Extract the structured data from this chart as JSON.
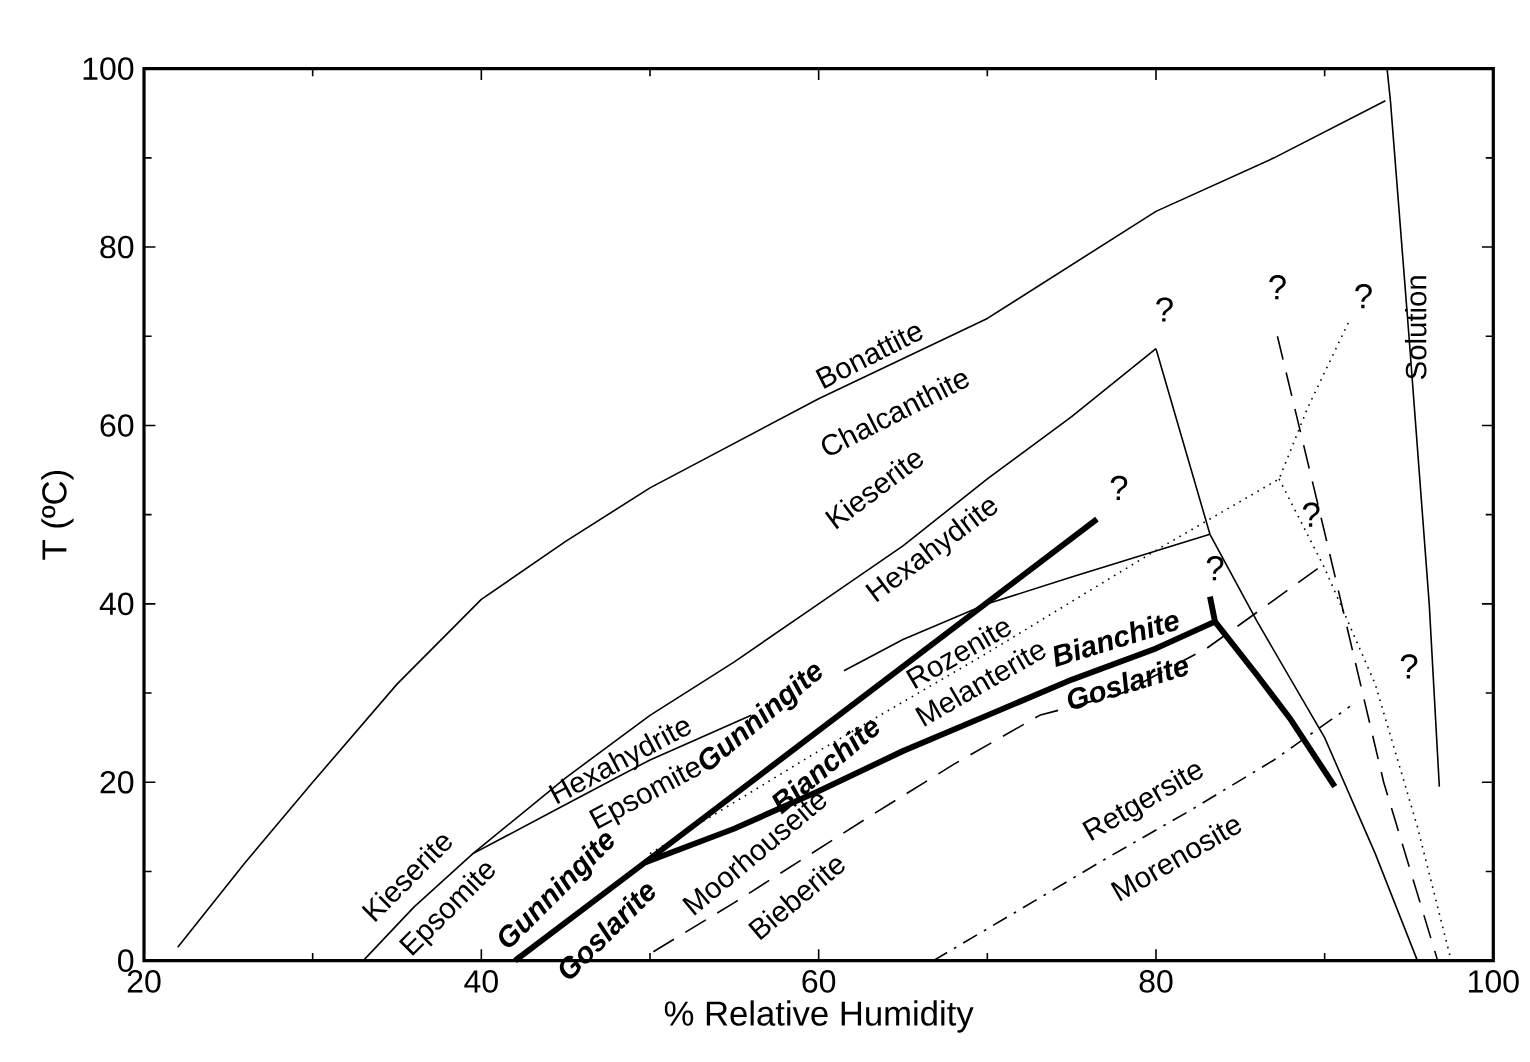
{
  "chart_data": {
    "type": "line",
    "xlabel": "% Relative Humidity",
    "ylabel": "T (ºC)",
    "xlim": [
      20,
      100
    ],
    "ylim": [
      0,
      100
    ],
    "xticks": [
      20,
      40,
      60,
      80,
      100
    ],
    "yticks": [
      0,
      20,
      40,
      60,
      80,
      100
    ],
    "marker": "none",
    "series": [
      {
        "color": "#000000",
        "line_style": "solid",
        "x": [
          22,
          26,
          30,
          35,
          40,
          45,
          50,
          60,
          70,
          80,
          87,
          93.6
        ],
        "values": [
          1.5,
          11,
          20,
          31,
          40.5,
          47,
          53,
          63,
          72,
          84,
          90,
          96.4
        ]
      },
      {
        "color": "#000000",
        "line_style": "solid",
        "x": [
          93.7,
          93.9,
          95,
          96.2,
          96.8
        ],
        "values": [
          100,
          96.4,
          70,
          40,
          19.5
        ]
      },
      {
        "color": "#000000",
        "line_style": "solid",
        "x": [
          33,
          36,
          39.5,
          45,
          50,
          55,
          60,
          65,
          70,
          75,
          80
        ],
        "values": [
          0,
          6,
          12,
          20.5,
          27.5,
          33.5,
          40,
          46.5,
          54,
          61,
          68.6
        ]
      },
      {
        "color": "#000000",
        "line_style": "solid",
        "x": [
          80,
          83.2,
          86,
          90,
          93,
          95.5
        ],
        "values": [
          68.6,
          47.8,
          38,
          25,
          12,
          0
        ]
      },
      {
        "color": "#000000",
        "line_style": "solid",
        "x": [
          39.5,
          45,
          50,
          56
        ],
        "values": [
          12,
          17.5,
          22.5,
          27.5
        ]
      },
      {
        "color": "#000000",
        "line_style": "solid",
        "x": [
          61.5,
          65,
          70,
          75,
          83.2
        ],
        "values": [
          32.5,
          36,
          40,
          43,
          47.8
        ]
      },
      {
        "color": "#000000",
        "line_style": "solid",
        "x": [
          42,
          49.7,
          76.5
        ],
        "values": [
          0,
          11,
          49.5
        ]
      },
      {
        "color": "#000000",
        "line_style": "solid",
        "x": [
          49.7,
          55,
          60,
          65,
          70,
          75,
          80,
          83.5
        ],
        "values": [
          11,
          14.8,
          19,
          23.5,
          27.5,
          31.5,
          35,
          38
        ]
      },
      {
        "color": "#000000",
        "line_style": "solid",
        "x": [
          83.2,
          83.5,
          86,
          88,
          90.6
        ],
        "values": [
          40.8,
          38,
          32,
          27,
          19.5
        ]
      },
      {
        "color": "#000000",
        "line_style": "dotted",
        "x": [
          50,
          60,
          70,
          80,
          87.3,
          89,
          91.4
        ],
        "values": [
          12,
          23.5,
          34.5,
          46,
          54,
          62,
          71.5
        ]
      },
      {
        "color": "#000000",
        "line_style": "dotted",
        "x": [
          87.3,
          90,
          93,
          95.5,
          97.5
        ],
        "values": [
          54,
          44,
          31,
          15,
          0
        ]
      },
      {
        "color": "#000000",
        "line_style": "dashed",
        "x": [
          87.2,
          90,
          93.5,
          96.7
        ],
        "values": [
          70,
          48,
          20,
          0
        ]
      },
      {
        "color": "#000000",
        "line_style": "dashed",
        "x": [
          50.2,
          55,
          62.8,
          68,
          73.1,
          78,
          83,
          90
        ],
        "values": [
          1,
          6.5,
          15.9,
          22,
          27.5,
          30,
          35,
          44.5
        ]
      },
      {
        "color": "#000000",
        "line_style": "dashdot",
        "x": [
          66.8,
          72,
          77,
          82,
          87,
          91.5
        ],
        "values": [
          0,
          5.8,
          11.4,
          16.8,
          22.5,
          28.5
        ]
      }
    ],
    "annotations": [
      "Bonattite",
      "Chalcanthite",
      "Kieserite",
      "Hexahydrite",
      "Kieserite",
      "Epsomite",
      "Hexahydrite",
      "Epsomite",
      "Gunningite",
      "Bianchite",
      "Gunningite",
      "Goslarite",
      "Rozenite",
      "Melanterite",
      "Bianchite",
      "Goslarite",
      "Moorhouseite",
      "Bieberite",
      "Retgersite",
      "Morenosite",
      "Solution",
      "?",
      "?",
      "?",
      "?",
      "?",
      "?",
      "?"
    ]
  }
}
